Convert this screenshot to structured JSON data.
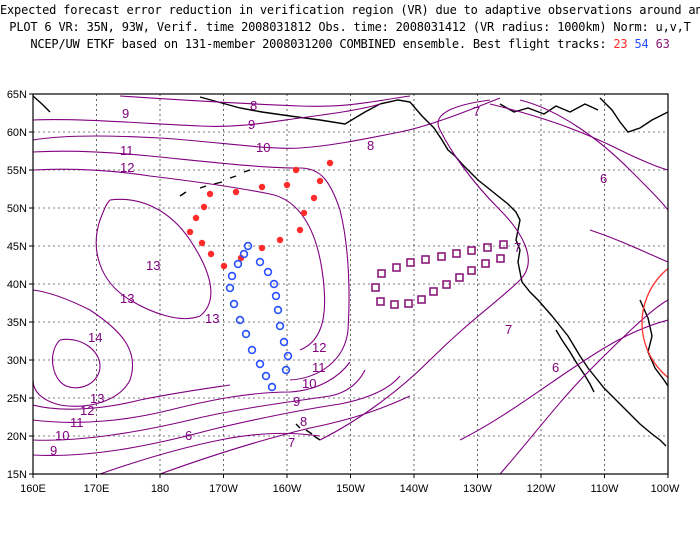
{
  "title": {
    "line1": "Expected forecast error reduction in verification region (VR) due to adaptive observations around any grid point.",
    "line2": "PLOT 6 VR: 35N, 93W, Verif. time 2008031812 Obs. time: 2008031412 (VR radius: 1000km) Norm: u,v,T",
    "line3_prefix": "NCEP/UW ETKF based on 131-member 2008031200 COMBINED ensemble.  Best flight tracks:",
    "track_red": "23",
    "track_blue": "54",
    "track_purple": "63"
  },
  "axes": {
    "x_labels": [
      "160E",
      "170E",
      "180",
      "170W",
      "160W",
      "150W",
      "140W",
      "130W",
      "120W",
      "110W",
      "100W"
    ],
    "y_labels": [
      "15N",
      "20N",
      "25N",
      "30N",
      "35N",
      "40N",
      "45N",
      "50N",
      "55N",
      "60N",
      "65N"
    ]
  },
  "contour_labels": [
    "9",
    "8",
    "9",
    "10",
    "8",
    "7",
    "11",
    "12",
    "13",
    "13",
    "13",
    "14",
    "13",
    "12",
    "11",
    "10",
    "9",
    "6",
    "12",
    "11",
    "10",
    "9",
    "8",
    "7",
    "7",
    "6",
    "7",
    "6"
  ],
  "colors": {
    "contour": "#800080",
    "track_red": "#ff2a2a",
    "track_blue": "#2a4fff",
    "track_purple": "#8a1a7a",
    "verification_circle": "#ff3030"
  }
}
